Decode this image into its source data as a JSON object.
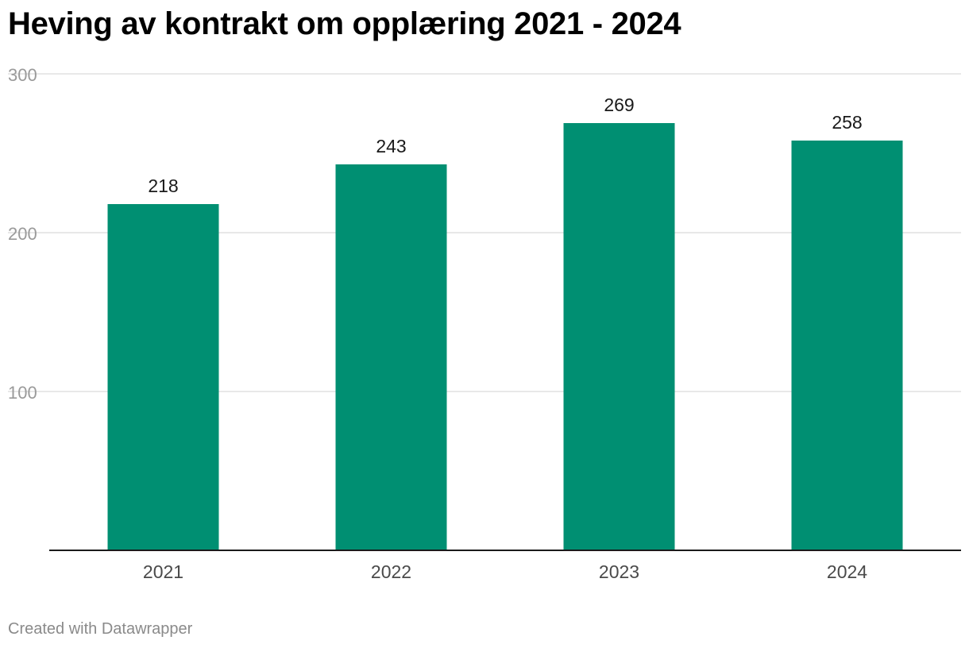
{
  "chart_data": {
    "type": "bar",
    "title": "Heving av kontrakt om opplæring 2021 - 2024",
    "categories": [
      "2021",
      "2022",
      "2023",
      "2024"
    ],
    "values": [
      218,
      243,
      269,
      258
    ],
    "data_labels": [
      "218",
      "243",
      "269",
      "258"
    ],
    "ylim": [
      0,
      300
    ],
    "yticks": [
      "100",
      "200",
      "300"
    ],
    "grid": true,
    "legend": "none",
    "xlabel": "",
    "ylabel": ""
  },
  "colors": {
    "bar": "#008f72",
    "gridline": "#e0e0e0",
    "baseline": "#1a1a1a",
    "tick_label": "#9a9a9a",
    "category_label": "#4a4a4a",
    "value_label": "#1a1a1a"
  },
  "footer": {
    "credit": "Created with Datawrapper"
  }
}
